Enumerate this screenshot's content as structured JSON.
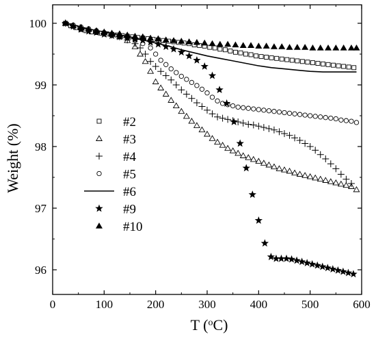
{
  "chart_data": {
    "type": "scatter",
    "xlabel": "T (°C)",
    "xlabel_base": "T (",
    "xlabel_sup": "o",
    "xlabel_tail": "C)",
    "ylabel": "Weight (%)",
    "xlim": [
      0,
      600
    ],
    "ylim": [
      95.6,
      100.3
    ],
    "x_ticks": [
      0,
      100,
      200,
      300,
      400,
      500,
      600
    ],
    "y_ticks": [
      96,
      97,
      98,
      99,
      100
    ],
    "grid": false,
    "legend_position": "left-center",
    "series": [
      {
        "name": "#2",
        "marker": "square-open",
        "x": [
          25,
          35,
          45,
          55,
          65,
          75,
          85,
          95,
          105,
          115,
          125,
          135,
          145,
          155,
          165,
          175,
          185,
          195,
          205,
          215,
          225,
          235,
          245,
          255,
          265,
          275,
          285,
          295,
          305,
          315,
          325,
          335,
          345,
          355,
          365,
          375,
          385,
          395,
          405,
          415,
          425,
          435,
          445,
          455,
          465,
          475,
          485,
          495,
          505,
          515,
          525,
          535,
          545,
          555,
          565,
          575,
          585
        ],
        "y": [
          100.0,
          99.96,
          99.93,
          99.9,
          99.88,
          99.86,
          99.85,
          99.84,
          99.83,
          99.82,
          99.81,
          99.8,
          99.79,
          99.78,
          99.77,
          99.76,
          99.75,
          99.74,
          99.73,
          99.72,
          99.71,
          99.7,
          99.69,
          99.68,
          99.67,
          99.65,
          99.64,
          99.63,
          99.61,
          99.6,
          99.58,
          99.57,
          99.55,
          99.53,
          99.52,
          99.5,
          99.49,
          99.47,
          99.46,
          99.45,
          99.44,
          99.43,
          99.42,
          99.41,
          99.4,
          99.39,
          99.38,
          99.37,
          99.36,
          99.35,
          99.34,
          99.33,
          99.32,
          99.31,
          99.3,
          99.29,
          99.28
        ]
      },
      {
        "name": "#3",
        "marker": "triangle-open",
        "x": [
          25,
          40,
          55,
          70,
          85,
          100,
          115,
          130,
          145,
          160,
          170,
          180,
          190,
          200,
          210,
          220,
          230,
          240,
          250,
          260,
          270,
          280,
          290,
          300,
          310,
          320,
          330,
          340,
          350,
          360,
          370,
          380,
          390,
          400,
          410,
          420,
          430,
          440,
          450,
          460,
          470,
          480,
          490,
          500,
          510,
          520,
          530,
          540,
          550,
          560,
          570,
          580,
          590
        ],
        "y": [
          100.0,
          99.96,
          99.93,
          99.9,
          99.87,
          99.85,
          99.82,
          99.78,
          99.72,
          99.62,
          99.5,
          99.38,
          99.22,
          99.05,
          98.95,
          98.85,
          98.75,
          98.66,
          98.57,
          98.49,
          98.41,
          98.34,
          98.27,
          98.2,
          98.13,
          98.07,
          98.02,
          97.97,
          97.93,
          97.89,
          97.85,
          97.82,
          97.79,
          97.76,
          97.73,
          97.7,
          97.67,
          97.64,
          97.62,
          97.6,
          97.57,
          97.55,
          97.53,
          97.51,
          97.49,
          97.47,
          97.45,
          97.43,
          97.41,
          97.39,
          97.37,
          97.35,
          97.3
        ]
      },
      {
        "name": "#4",
        "marker": "plus",
        "x": [
          25,
          40,
          55,
          70,
          85,
          100,
          115,
          130,
          145,
          160,
          170,
          180,
          190,
          200,
          210,
          220,
          230,
          240,
          250,
          260,
          270,
          280,
          290,
          300,
          310,
          320,
          330,
          340,
          350,
          360,
          370,
          380,
          390,
          400,
          410,
          420,
          430,
          440,
          450,
          460,
          470,
          480,
          490,
          500,
          510,
          520,
          530,
          540,
          550,
          560,
          570,
          580
        ],
        "y": [
          100.0,
          99.96,
          99.93,
          99.9,
          99.87,
          99.84,
          99.81,
          99.78,
          99.73,
          99.67,
          99.6,
          99.5,
          99.38,
          99.3,
          99.22,
          99.15,
          99.08,
          99.0,
          98.92,
          98.85,
          98.78,
          98.71,
          98.65,
          98.59,
          98.53,
          98.48,
          98.46,
          98.44,
          98.42,
          98.4,
          98.38,
          98.36,
          98.35,
          98.33,
          98.31,
          98.29,
          98.27,
          98.24,
          98.21,
          98.18,
          98.14,
          98.1,
          98.05,
          98.0,
          97.94,
          97.87,
          97.8,
          97.72,
          97.64,
          97.55,
          97.47,
          97.4
        ]
      },
      {
        "name": "#5",
        "marker": "circle-open",
        "x": [
          25,
          40,
          55,
          70,
          85,
          100,
          115,
          130,
          145,
          160,
          175,
          190,
          200,
          210,
          220,
          230,
          240,
          250,
          260,
          270,
          280,
          290,
          300,
          310,
          320,
          330,
          340,
          350,
          360,
          370,
          380,
          390,
          400,
          410,
          420,
          430,
          440,
          450,
          460,
          470,
          480,
          490,
          500,
          510,
          520,
          530,
          540,
          550,
          560,
          570,
          580,
          590
        ],
        "y": [
          100.0,
          99.97,
          99.94,
          99.91,
          99.88,
          99.85,
          99.82,
          99.79,
          99.76,
          99.72,
          99.67,
          99.6,
          99.5,
          99.4,
          99.33,
          99.26,
          99.2,
          99.14,
          99.09,
          99.04,
          98.99,
          98.93,
          98.87,
          98.8,
          98.74,
          98.7,
          98.68,
          98.66,
          98.64,
          98.63,
          98.62,
          98.61,
          98.6,
          98.59,
          98.58,
          98.57,
          98.56,
          98.55,
          98.54,
          98.53,
          98.52,
          98.51,
          98.5,
          98.49,
          98.48,
          98.47,
          98.46,
          98.45,
          98.43,
          98.42,
          98.41,
          98.39
        ]
      },
      {
        "name": "#6",
        "marker": "line",
        "x": [
          25,
          50,
          75,
          100,
          125,
          150,
          175,
          200,
          225,
          250,
          275,
          300,
          325,
          350,
          375,
          400,
          425,
          450,
          475,
          500,
          525,
          550,
          575,
          590
        ],
        "y": [
          100.0,
          99.95,
          99.9,
          99.86,
          99.82,
          99.78,
          99.73,
          99.68,
          99.63,
          99.57,
          99.52,
          99.47,
          99.43,
          99.39,
          99.35,
          99.31,
          99.28,
          99.26,
          99.24,
          99.22,
          99.21,
          99.21,
          99.21,
          99.21
        ]
      },
      {
        "name": "#9",
        "marker": "star-filled",
        "x": [
          25,
          40,
          55,
          70,
          85,
          100,
          115,
          130,
          145,
          160,
          175,
          190,
          205,
          220,
          235,
          250,
          265,
          280,
          295,
          310,
          324,
          338,
          352,
          364,
          376,
          388,
          400,
          412,
          424,
          434,
          444,
          454,
          464,
          474,
          484,
          494,
          504,
          514,
          524,
          534,
          544,
          554,
          564,
          574,
          584
        ],
        "y": [
          100.0,
          99.95,
          99.9,
          99.87,
          99.85,
          99.82,
          99.8,
          99.78,
          99.76,
          99.74,
          99.72,
          99.69,
          99.66,
          99.62,
          99.58,
          99.53,
          99.47,
          99.4,
          99.3,
          99.15,
          98.92,
          98.7,
          98.4,
          98.05,
          97.65,
          97.22,
          96.8,
          96.43,
          96.21,
          96.18,
          96.18,
          96.18,
          96.17,
          96.15,
          96.13,
          96.11,
          96.09,
          96.07,
          96.05,
          96.03,
          96.01,
          95.99,
          95.97,
          95.95,
          95.93
        ]
      },
      {
        "name": "#10",
        "marker": "triangle-filled",
        "x": [
          25,
          40,
          55,
          70,
          85,
          100,
          115,
          130,
          145,
          160,
          175,
          190,
          205,
          220,
          235,
          250,
          265,
          280,
          295,
          310,
          325,
          340,
          355,
          370,
          385,
          400,
          415,
          430,
          445,
          460,
          475,
          490,
          505,
          520,
          535,
          550,
          565,
          580,
          590
        ],
        "y": [
          100.0,
          99.96,
          99.93,
          99.9,
          99.88,
          99.86,
          99.84,
          99.83,
          99.81,
          99.79,
          99.78,
          99.76,
          99.75,
          99.73,
          99.72,
          99.71,
          99.7,
          99.69,
          99.68,
          99.67,
          99.66,
          99.66,
          99.65,
          99.64,
          99.64,
          99.63,
          99.63,
          99.62,
          99.62,
          99.61,
          99.61,
          99.61,
          99.6,
          99.6,
          99.6,
          99.6,
          99.6,
          99.6,
          99.6
        ]
      }
    ]
  }
}
